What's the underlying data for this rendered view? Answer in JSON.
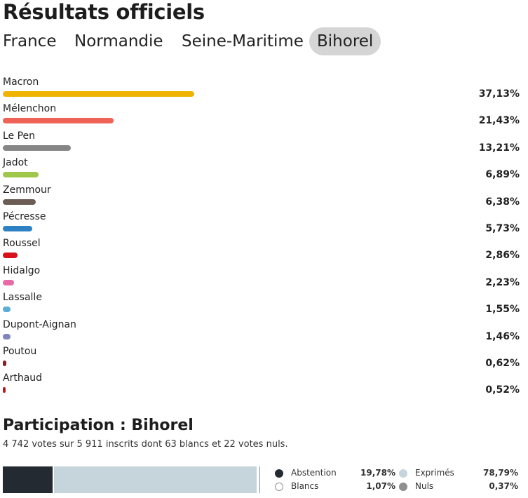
{
  "page_title": "Résultats officiels",
  "tabs": [
    {
      "label": "France"
    },
    {
      "label": "Normandie"
    },
    {
      "label": "Seine-Maritime"
    },
    {
      "label": "Bihorel",
      "active": true
    }
  ],
  "candidates": [
    {
      "name": "Macron",
      "percent_label": "37,13%",
      "percent": 37.13,
      "color": "#f0b400"
    },
    {
      "name": "Mélenchon",
      "percent_label": "21,43%",
      "percent": 21.43,
      "color": "#ee6258"
    },
    {
      "name": "Le Pen",
      "percent_label": "13,21%",
      "percent": 13.21,
      "color": "#868686"
    },
    {
      "name": "Jadot",
      "percent_label": "6,89%",
      "percent": 6.89,
      "color": "#9fc84a"
    },
    {
      "name": "Zemmour",
      "percent_label": "6,38%",
      "percent": 6.38,
      "color": "#6b5d55"
    },
    {
      "name": "Pécresse",
      "percent_label": "5,73%",
      "percent": 5.73,
      "color": "#2e82c4"
    },
    {
      "name": "Roussel",
      "percent_label": "2,86%",
      "percent": 2.86,
      "color": "#d8121c"
    },
    {
      "name": "Hidalgo",
      "percent_label": "2,23%",
      "percent": 2.23,
      "color": "#e76aa6"
    },
    {
      "name": "Lassalle",
      "percent_label": "1,55%",
      "percent": 1.55,
      "color": "#5aafd6"
    },
    {
      "name": "Dupont-Aignan",
      "percent_label": "1,46%",
      "percent": 1.46,
      "color": "#7f86c0"
    },
    {
      "name": "Poutou",
      "percent_label": "0,62%",
      "percent": 0.62,
      "color": "#8e1b1b"
    },
    {
      "name": "Arthaud",
      "percent_label": "0,52%",
      "percent": 0.52,
      "color": "#b31b1b"
    }
  ],
  "participation": {
    "title": "Participation : Bihorel",
    "summary": "4 742 votes sur 5 911 inscrits dont 63 blancs et 22 votes nuls.",
    "segments": [
      {
        "label": "Abstention",
        "value_label": "19,78%",
        "value": 19.78,
        "color": "#232a31"
      },
      {
        "label": "Exprimés",
        "value_label": "78,79%",
        "value": 78.79,
        "color": "#c5d5db"
      },
      {
        "label": "Blancs",
        "value_label": "1,07%",
        "value": 1.07,
        "color": "#ffffff"
      },
      {
        "label": "Nuls",
        "value_label": "0,37%",
        "value": 0.37,
        "color": "#8e8f91"
      }
    ]
  }
}
